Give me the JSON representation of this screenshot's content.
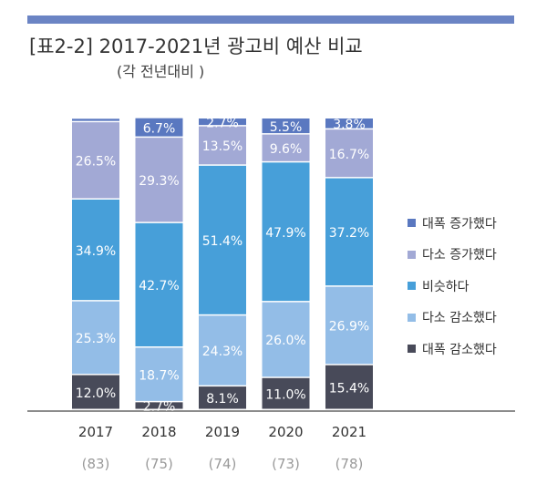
{
  "header": {
    "title": "[표2-2] 2017-2021년 광고비 예산 비교",
    "subtitle": "(각 전년대비 )"
  },
  "colors": {
    "rule": "#6b84c4",
    "segments": [
      "#484a59",
      "#93bde7",
      "#479fd9",
      "#a2a9d5",
      "#5a78c0"
    ]
  },
  "chart_data": {
    "type": "bar",
    "stacked": true,
    "categories": [
      "2017",
      "2018",
      "2019",
      "2020",
      "2021"
    ],
    "sample_sizes": [
      "(83)",
      "(75)",
      "(74)",
      "(73)",
      "(78)"
    ],
    "series": [
      {
        "name": "대폭 감소했다",
        "values": [
          12.0,
          2.7,
          8.1,
          11.0,
          15.4
        ]
      },
      {
        "name": "다소 감소했다",
        "values": [
          25.3,
          18.7,
          24.3,
          26.0,
          26.9
        ]
      },
      {
        "name": "비슷하다",
        "values": [
          34.9,
          42.7,
          51.4,
          47.9,
          37.2
        ]
      },
      {
        "name": "다소 증가했다",
        "values": [
          26.5,
          29.3,
          13.5,
          9.6,
          16.7
        ]
      },
      {
        "name": "대폭 증가했다",
        "values": [
          1.2,
          6.7,
          2.7,
          5.5,
          3.8
        ]
      }
    ],
    "labels": [
      [
        "12.0%",
        "2.7%",
        "8.1%",
        "11.0%",
        "15.4%"
      ],
      [
        "25.3%",
        "18.7%",
        "24.3%",
        "26.0%",
        "26.9%"
      ],
      [
        "34.9%",
        "42.7%",
        "51.4%",
        "47.9%",
        "37.2%"
      ],
      [
        "26.5%",
        "29.3%",
        "13.5%",
        "9.6%",
        "16.7%"
      ],
      [
        "",
        "6.7%",
        "2.7%",
        "5.5%",
        "3.8%"
      ]
    ],
    "legend": [
      "대폭 증가했다",
      "다소 증가했다",
      "비슷하다",
      "다소 감소했다",
      "대폭 감소했다"
    ],
    "ylim": [
      0,
      100
    ]
  }
}
